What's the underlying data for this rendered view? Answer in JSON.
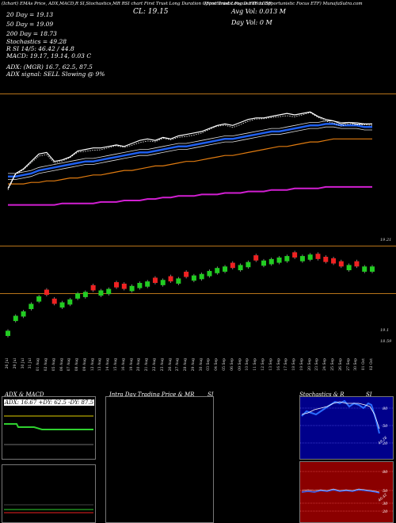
{
  "header": {
    "topline": "(Ichart) EMAs Price, ADX,MACD,R SI,Stochastics,MR RSI chart First Trust Long Duration Opportunistic Focus ETF LDSF",
    "name_line": "(First Trust Long Duration Opportunistic Focus ETF) MunafaSutra.com",
    "close_label": "CL: 19.15",
    "avg_vol": "Avg Vol: 0.013 M",
    "day_vol": "Day Vol: 0  M",
    "ema20": "20  Day = 19.13",
    "ema50": "50  Day = 19.09",
    "ema200": "200  Day = 18.73",
    "stoch": "Stochastics = 49.28",
    "rsi": "R          SI 14/5: 46.42 / 44.8",
    "macd": "MACD: 19.17,  19.14,  0.03 C",
    "adx": "ADX:                     (MGR) 16.7,  62.5,  87.5",
    "adx_signal": "ADX  signal: SELL  Slowing @ 9%",
    "price_hi": "19.21",
    "price_mid1": "19.1",
    "price_mid2": "18.59"
  },
  "dates": [
    "26 Jul",
    "29 Jul",
    "30 Jul",
    "31 Jul",
    "01 Aug",
    "02 Aug",
    "05 Aug",
    "06 Aug",
    "07 Aug",
    "08 Aug",
    "09 Aug",
    "12 Aug",
    "13 Aug",
    "14 Aug",
    "15 Aug",
    "16 Aug",
    "19 Aug",
    "20 Aug",
    "21 Aug",
    "22 Aug",
    "23 Aug",
    "26 Aug",
    "27 Aug",
    "28 Aug",
    "29 Aug",
    "30 Aug",
    "03 Sep",
    "04 Sep",
    "05 Sep",
    "06 Sep",
    "09 Sep",
    "10 Sep",
    "11 Sep",
    "12 Sep",
    "13 Sep",
    "16 Sep",
    "17 Sep",
    "18 Sep",
    "19 Sep",
    "20 Sep",
    "23 Sep",
    "24 Sep",
    "25 Sep",
    "26 Sep",
    "27 Sep",
    "30 Sep",
    "01 Oct",
    "02 Oct"
  ],
  "panels": {
    "adx_title": "ADX  & MACD",
    "adx_values": "ADX: 16.67 +DY: 62.5 -DY: 87.5",
    "mrsi_title": "Intra  Day Trading Price  & MR",
    "mrsi_title2": "SI",
    "stoch_title": "Stochastics & R",
    "stoch_title2": "SI",
    "stoch_ticks": [
      "80",
      "50",
      "20"
    ],
    "stoch_last": "49.28",
    "rsi_ticks": [
      "80",
      "50",
      "30",
      "20"
    ],
    "rsi_last": "46.42"
  },
  "chart_data": {
    "type": "candlestick",
    "x": [
      "26 Jul",
      "29 Jul",
      "30 Jul",
      "31 Jul",
      "01 Aug",
      "02 Aug",
      "05 Aug",
      "06 Aug",
      "07 Aug",
      "08 Aug",
      "09 Aug",
      "12 Aug",
      "13 Aug",
      "14 Aug",
      "15 Aug",
      "16 Aug",
      "19 Aug",
      "20 Aug",
      "21 Aug",
      "22 Aug",
      "23 Aug",
      "26 Aug",
      "27 Aug",
      "28 Aug",
      "29 Aug",
      "30 Aug",
      "03 Sep",
      "04 Sep",
      "05 Sep",
      "06 Sep",
      "09 Sep",
      "10 Sep",
      "11 Sep",
      "12 Sep",
      "13 Sep",
      "16 Sep",
      "17 Sep",
      "18 Sep",
      "19 Sep",
      "20 Sep",
      "23 Sep",
      "24 Sep",
      "25 Sep",
      "26 Sep",
      "27 Sep",
      "30 Sep",
      "01 Oct",
      "02 Oct"
    ],
    "close": [
      18.72,
      18.82,
      18.85,
      18.9,
      18.95,
      18.96,
      18.9,
      18.91,
      18.93,
      18.97,
      18.98,
      18.99,
      18.99,
      19,
      19.01,
      19,
      19.02,
      19.04,
      19.05,
      19.04,
      19.06,
      19.05,
      19.07,
      19.08,
      19.09,
      19.1,
      19.12,
      19.14,
      19.15,
      19.14,
      19.16,
      19.18,
      19.19,
      19.19,
      19.2,
      19.21,
      19.22,
      19.21,
      19.22,
      19.23,
      19.2,
      19.18,
      19.17,
      19.15,
      19.16,
      19.15,
      19.15,
      19.15
    ],
    "up": [
      true,
      true,
      true,
      true,
      true,
      false,
      false,
      true,
      true,
      true,
      true,
      false,
      true,
      true,
      false,
      false,
      true,
      true,
      true,
      false,
      true,
      false,
      true,
      false,
      true,
      true,
      true,
      true,
      true,
      false,
      true,
      true,
      false,
      true,
      true,
      true,
      true,
      false,
      true,
      true,
      false,
      false,
      false,
      false,
      true,
      false,
      true,
      true
    ],
    "ema20": [
      18.8,
      18.8,
      18.81,
      18.82,
      18.84,
      18.85,
      18.86,
      18.87,
      18.88,
      18.89,
      18.9,
      18.9,
      18.91,
      18.92,
      18.93,
      18.94,
      18.95,
      18.96,
      18.96,
      18.97,
      18.98,
      18.99,
      19,
      19,
      19.01,
      19.02,
      19.03,
      19.04,
      19.05,
      19.05,
      19.06,
      19.07,
      19.08,
      19.09,
      19.1,
      19.1,
      19.11,
      19.12,
      19.13,
      19.14,
      19.14,
      19.15,
      19.15,
      19.14,
      19.14,
      19.14,
      19.13,
      19.13
    ],
    "ema50": [
      18.79,
      18.79,
      18.79,
      18.8,
      18.8,
      18.81,
      18.81,
      18.82,
      18.83,
      18.83,
      18.84,
      18.85,
      18.85,
      18.86,
      18.87,
      18.88,
      18.88,
      18.89,
      18.9,
      18.91,
      18.91,
      18.92,
      18.93,
      18.94,
      18.94,
      18.95,
      18.96,
      18.97,
      18.98,
      18.98,
      18.99,
      19,
      19.01,
      19.02,
      19.03,
      19.04,
      19.04,
      19.05,
      19.06,
      19.07,
      19.07,
      19.08,
      19.09,
      19.09,
      19.09,
      19.09,
      19.09,
      19.09
    ],
    "ema200": [
      18.61,
      18.61,
      18.61,
      18.61,
      18.61,
      18.61,
      18.61,
      18.62,
      18.62,
      18.62,
      18.62,
      18.62,
      18.63,
      18.63,
      18.63,
      18.64,
      18.64,
      18.64,
      18.65,
      18.65,
      18.66,
      18.66,
      18.67,
      18.67,
      18.67,
      18.68,
      18.68,
      18.68,
      18.69,
      18.69,
      18.69,
      18.7,
      18.7,
      18.7,
      18.71,
      18.71,
      18.71,
      18.72,
      18.72,
      18.72,
      18.72,
      18.73,
      18.73,
      18.73,
      18.73,
      18.73,
      18.73,
      18.73
    ],
    "ylim": [
      18.5,
      19.3
    ]
  }
}
